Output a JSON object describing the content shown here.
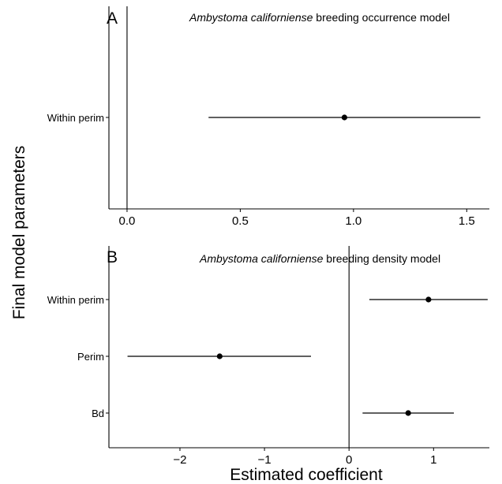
{
  "figure": {
    "ylabel": "Final model parameters",
    "xlabel": "Estimated coefficient"
  },
  "chart_data": [
    {
      "type": "forest",
      "panel": "A",
      "title_italic": "Ambystoma californiense",
      "title_rest": " breeding occurrence model",
      "categories": [
        "Within perim"
      ],
      "estimates": [
        0.96
      ],
      "lower": [
        0.36
      ],
      "upper": [
        1.56
      ],
      "xlim": [
        -0.08,
        1.6
      ],
      "xticks": [
        0.0,
        0.5,
        1.0,
        1.5
      ],
      "xtick_labels": [
        "0.0",
        "0.5",
        "1.0",
        "1.5"
      ],
      "reference_line": 0,
      "grid": false
    },
    {
      "type": "forest",
      "panel": "B",
      "title_italic": "Ambystoma californiense",
      "title_rest": " breeding density model",
      "categories": [
        "Within perim",
        "Perim",
        "Bd"
      ],
      "estimates": [
        0.94,
        -1.53,
        0.7
      ],
      "lower": [
        0.24,
        -2.62,
        0.16
      ],
      "upper": [
        1.64,
        -0.45,
        1.24
      ],
      "xlim": [
        -2.84,
        1.66
      ],
      "xticks": [
        -2,
        -1,
        0,
        1
      ],
      "xtick_labels": [
        "−2",
        "−1",
        "0",
        "1"
      ],
      "reference_line": 0,
      "grid": false
    }
  ]
}
